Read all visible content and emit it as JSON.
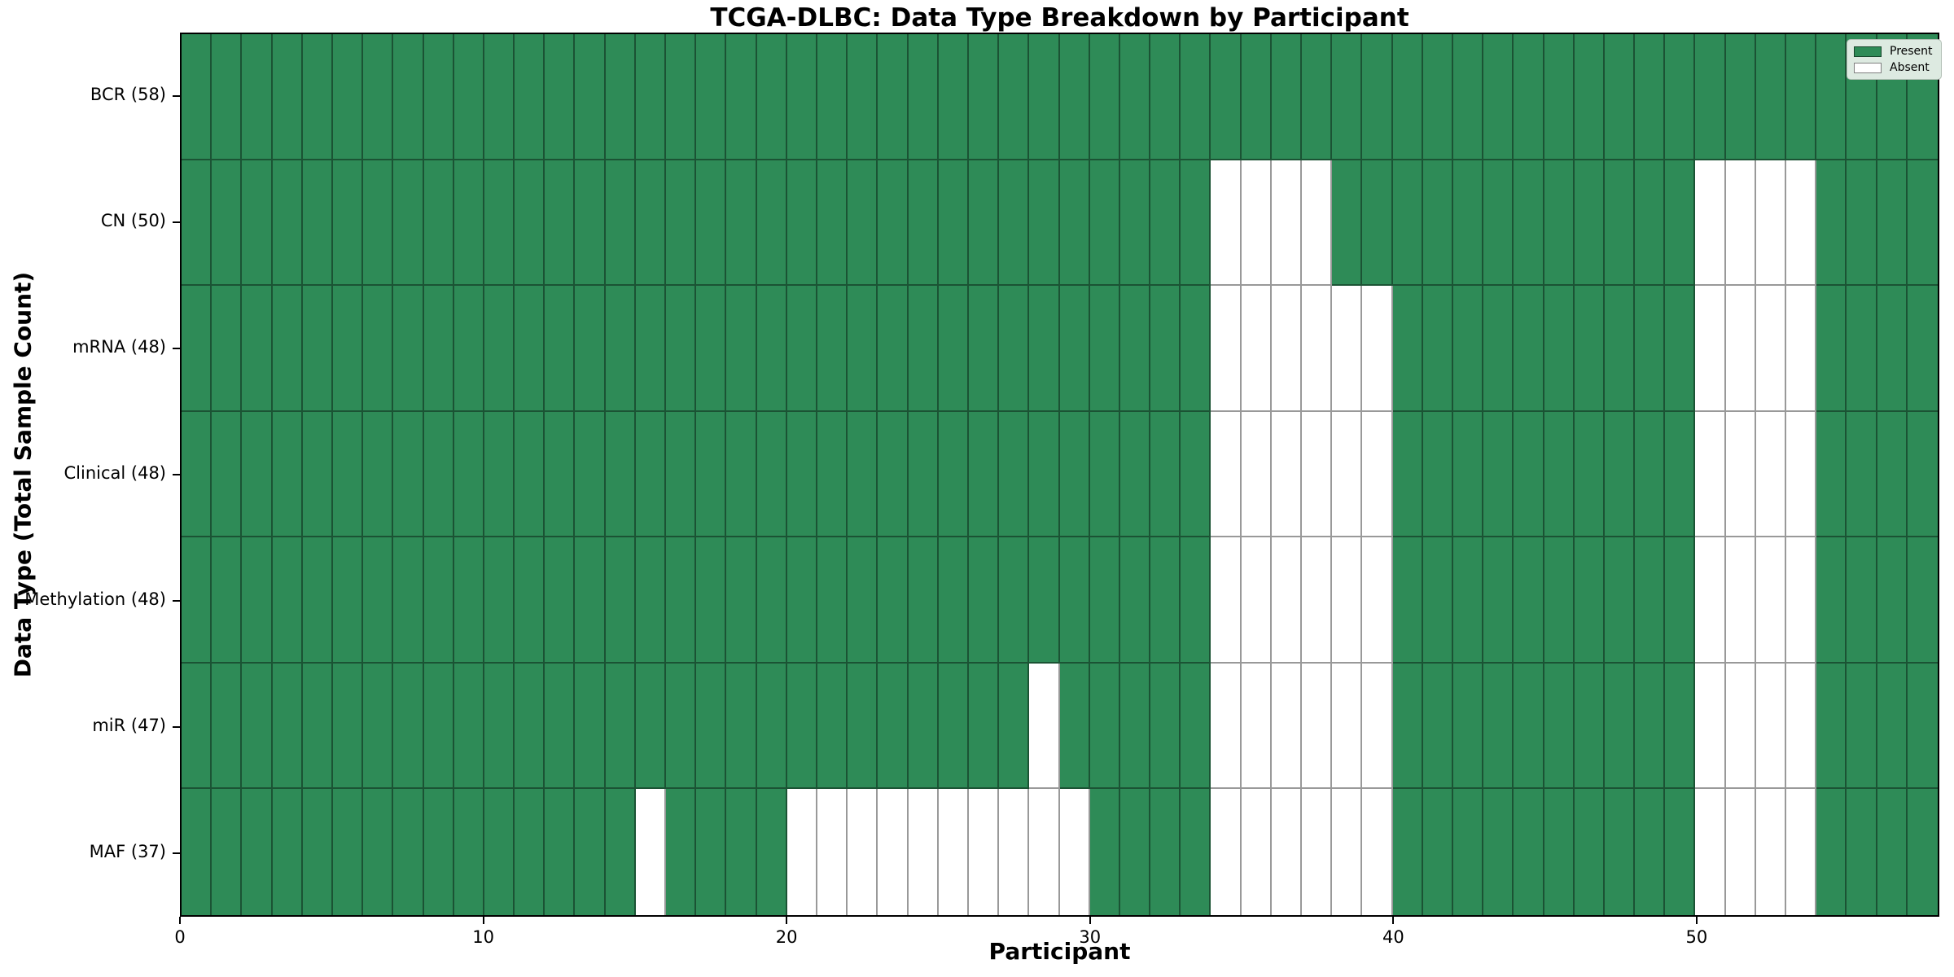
{
  "title": "TCGA-DLBC: Data Type Breakdown by Participant",
  "xlabel": "Participant",
  "ylabel": "Data Type (Total Sample Count)",
  "colors": {
    "present": "#2e8b57",
    "absent": "#ffffff",
    "grid_line": "rgba(0,0,0,0.40)",
    "legend_bg": "#ddeae1"
  },
  "chart_data": {
    "type": "heatmap",
    "title": "TCGA-DLBC: Data Type Breakdown by Participant",
    "xlabel": "Participant",
    "ylabel": "Data Type (Total Sample Count)",
    "n_participants": 58,
    "x_ticks": [
      0,
      10,
      20,
      30,
      40,
      50
    ],
    "legend_position": "upper right",
    "cell_states": [
      "Present",
      "Absent"
    ],
    "rows": [
      {
        "label": "BCR (58)",
        "data_type": "BCR",
        "total": 58,
        "absent_participants": []
      },
      {
        "label": "CN (50)",
        "data_type": "CN",
        "total": 50,
        "absent_participants": [
          34,
          35,
          36,
          37,
          50,
          51,
          52,
          53
        ]
      },
      {
        "label": "mRNA (48)",
        "data_type": "mRNA",
        "total": 48,
        "absent_participants": [
          34,
          35,
          36,
          37,
          38,
          39,
          50,
          51,
          52,
          53
        ]
      },
      {
        "label": "Clinical (48)",
        "data_type": "Clinical",
        "total": 48,
        "absent_participants": [
          34,
          35,
          36,
          37,
          38,
          39,
          50,
          51,
          52,
          53
        ]
      },
      {
        "label": "Methylation (48)",
        "data_type": "Methylation",
        "total": 48,
        "absent_participants": [
          34,
          35,
          36,
          37,
          38,
          39,
          50,
          51,
          52,
          53
        ]
      },
      {
        "label": "miR (47)",
        "data_type": "miR",
        "total": 47,
        "absent_participants": [
          28,
          34,
          35,
          36,
          37,
          38,
          39,
          50,
          51,
          52,
          53
        ]
      },
      {
        "label": "MAF (37)",
        "data_type": "MAF",
        "total": 37,
        "absent_participants": [
          15,
          20,
          21,
          22,
          23,
          24,
          25,
          26,
          27,
          28,
          29,
          34,
          35,
          36,
          37,
          38,
          39,
          50,
          51,
          52,
          53
        ]
      }
    ],
    "legend_entries": [
      {
        "label": "Present",
        "color": "#2e8b57"
      },
      {
        "label": "Absent",
        "color": "#ffffff"
      }
    ]
  }
}
